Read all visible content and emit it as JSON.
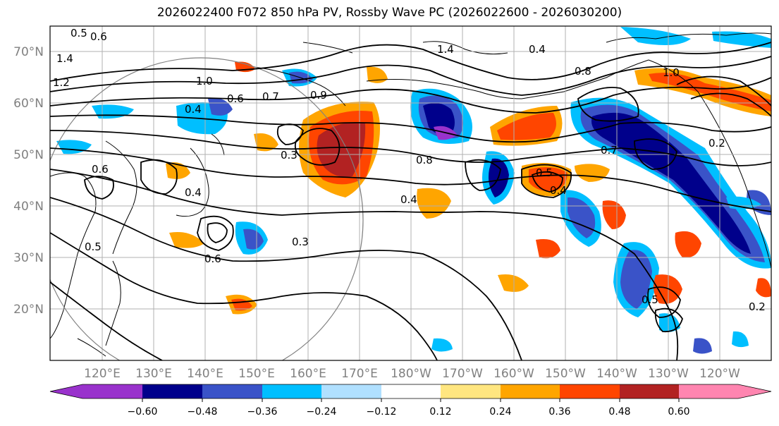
{
  "title": "2026022400 F072 850 hPa PV, Rossby Wave PC (2026022600 - 2026030200)",
  "map": {
    "lon_ticks": [
      "120°E",
      "130°E",
      "140°E",
      "150°E",
      "160°E",
      "170°E",
      "180°W",
      "170°W",
      "160°W",
      "150°W",
      "140°W",
      "130°W",
      "120°W"
    ],
    "lat_ticks": [
      "70°N",
      "60°N",
      "50°N",
      "40°N",
      "30°N",
      "20°N"
    ],
    "contour_labels": [
      "0.5",
      "0.6",
      "1.4",
      "1.2",
      "1.0",
      "0.4",
      "0.6",
      "0.7",
      "0.9",
      "0.3",
      "0.4",
      "0.6",
      "0.5",
      "0.3",
      "0.6",
      "0.4",
      "1.4",
      "0.8",
      "0.8",
      "0.5",
      "0.4",
      "0.7",
      "0.2",
      "1.0",
      "0.4",
      "0.5",
      "0.2"
    ]
  },
  "colorbar": {
    "tick_labels": [
      "−0.60",
      "−0.48",
      "−0.36",
      "−0.24",
      "−0.12",
      "0.12",
      "0.24",
      "0.36",
      "0.48",
      "0.60"
    ],
    "colors": [
      "#9932cc",
      "#00008b",
      "#3a53c8",
      "#00bfff",
      "#b0e0ff",
      "#ffffff",
      "#ffe680",
      "#ffa500",
      "#ff4500",
      "#b22222",
      "#ff85b0"
    ]
  }
}
